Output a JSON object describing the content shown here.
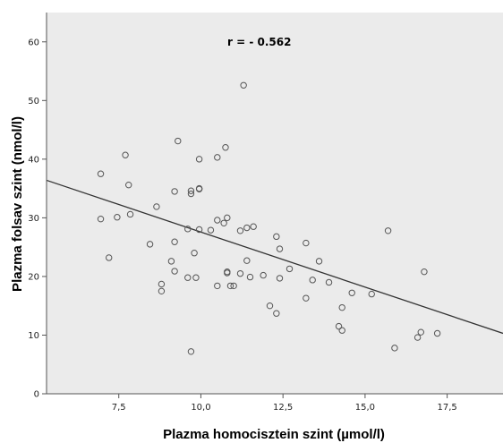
{
  "chart_data": {
    "type": "scatter",
    "xlabel": "Plazma homocisztein szint (µmol/l)",
    "ylabel": "Plazma folsav szint (nmol/l)",
    "annotation": "r = - 0.562",
    "xlim": [
      5.3,
      19.2
    ],
    "ylim": [
      0,
      65
    ],
    "xticks": [
      7.5,
      10.0,
      12.5,
      15.0,
      17.5
    ],
    "xtick_labels": [
      "7,5",
      "10,0",
      "12,5",
      "15,0",
      "17,5"
    ],
    "yticks": [
      0,
      10,
      20,
      30,
      40,
      50,
      60
    ],
    "ytick_labels": [
      "0",
      "10",
      "20",
      "30",
      "40",
      "50",
      "60"
    ],
    "grid": false,
    "colors": {
      "plot_bg": "#ebebeb",
      "marker": "#555555",
      "line": "#333333"
    },
    "regression_line": {
      "x": [
        5.3,
        19.2
      ],
      "y": [
        36.4,
        10.3
      ]
    },
    "points": [
      {
        "x": 6.95,
        "y": 37.5
      },
      {
        "x": 6.95,
        "y": 29.8
      },
      {
        "x": 7.2,
        "y": 23.2
      },
      {
        "x": 7.45,
        "y": 30.1
      },
      {
        "x": 7.7,
        "y": 40.7
      },
      {
        "x": 7.8,
        "y": 35.6
      },
      {
        "x": 7.85,
        "y": 30.6
      },
      {
        "x": 8.45,
        "y": 25.5
      },
      {
        "x": 8.65,
        "y": 31.9
      },
      {
        "x": 8.8,
        "y": 18.7
      },
      {
        "x": 8.8,
        "y": 17.5
      },
      {
        "x": 9.1,
        "y": 22.6
      },
      {
        "x": 9.2,
        "y": 34.5
      },
      {
        "x": 9.2,
        "y": 25.9
      },
      {
        "x": 9.2,
        "y": 20.9
      },
      {
        "x": 9.3,
        "y": 43.1
      },
      {
        "x": 9.6,
        "y": 28.1
      },
      {
        "x": 9.6,
        "y": 19.8
      },
      {
        "x": 9.7,
        "y": 34.6
      },
      {
        "x": 9.7,
        "y": 34.1
      },
      {
        "x": 9.7,
        "y": 7.2
      },
      {
        "x": 9.8,
        "y": 24.0
      },
      {
        "x": 9.85,
        "y": 19.8
      },
      {
        "x": 9.95,
        "y": 40.0
      },
      {
        "x": 9.95,
        "y": 34.9
      },
      {
        "x": 9.95,
        "y": 35.0
      },
      {
        "x": 9.95,
        "y": 28.0
      },
      {
        "x": 10.3,
        "y": 27.9
      },
      {
        "x": 10.5,
        "y": 40.3
      },
      {
        "x": 10.5,
        "y": 29.6
      },
      {
        "x": 10.5,
        "y": 18.4
      },
      {
        "x": 10.7,
        "y": 29.1
      },
      {
        "x": 10.75,
        "y": 42.0
      },
      {
        "x": 10.8,
        "y": 30.0
      },
      {
        "x": 10.8,
        "y": 20.8
      },
      {
        "x": 10.8,
        "y": 20.6
      },
      {
        "x": 10.9,
        "y": 18.4
      },
      {
        "x": 11.0,
        "y": 18.4
      },
      {
        "x": 11.2,
        "y": 27.8
      },
      {
        "x": 11.2,
        "y": 20.5
      },
      {
        "x": 11.3,
        "y": 52.6
      },
      {
        "x": 11.4,
        "y": 28.3
      },
      {
        "x": 11.4,
        "y": 22.7
      },
      {
        "x": 11.5,
        "y": 19.9
      },
      {
        "x": 11.6,
        "y": 28.5
      },
      {
        "x": 11.9,
        "y": 20.2
      },
      {
        "x": 12.1,
        "y": 15.0
      },
      {
        "x": 12.3,
        "y": 26.8
      },
      {
        "x": 12.3,
        "y": 13.7
      },
      {
        "x": 12.4,
        "y": 24.7
      },
      {
        "x": 12.4,
        "y": 19.7
      },
      {
        "x": 12.7,
        "y": 21.3
      },
      {
        "x": 13.2,
        "y": 25.7
      },
      {
        "x": 13.2,
        "y": 16.3
      },
      {
        "x": 13.4,
        "y": 19.4
      },
      {
        "x": 13.6,
        "y": 22.6
      },
      {
        "x": 13.9,
        "y": 19.0
      },
      {
        "x": 14.2,
        "y": 11.5
      },
      {
        "x": 14.3,
        "y": 10.8
      },
      {
        "x": 14.3,
        "y": 14.7
      },
      {
        "x": 14.6,
        "y": 17.2
      },
      {
        "x": 15.2,
        "y": 17.0
      },
      {
        "x": 15.7,
        "y": 27.8
      },
      {
        "x": 15.9,
        "y": 7.8
      },
      {
        "x": 16.6,
        "y": 9.6
      },
      {
        "x": 16.7,
        "y": 10.5
      },
      {
        "x": 16.8,
        "y": 20.8
      },
      {
        "x": 17.2,
        "y": 10.3
      }
    ]
  }
}
